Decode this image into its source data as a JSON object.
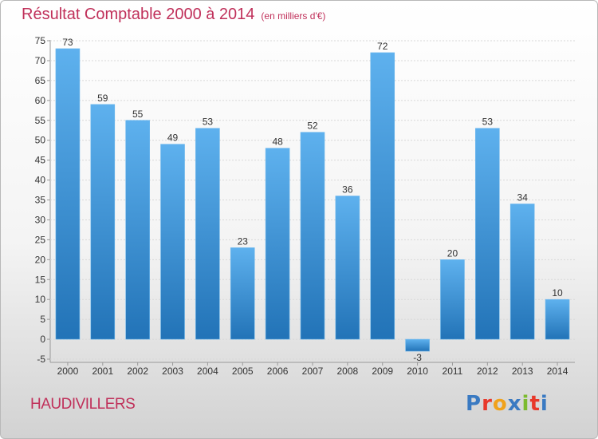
{
  "header": {
    "title": "Résultat Comptable 2000 à 2014",
    "unit": "(en milliers d'€)"
  },
  "footer": {
    "place": "HAUDIVILLERS",
    "logo": "Proxiti",
    "logo_colors": [
      "#3a7ac2",
      "#e8392b",
      "#f0a21c",
      "#3a7ac2",
      "#7cbb2f",
      "#e8392b",
      "#3a7ac2"
    ]
  },
  "colors": {
    "title": "#c0305a",
    "bar_top": "#5eb1ee",
    "bar_bottom": "#2273b7",
    "grid": "#d8d8d8"
  },
  "chart_data": {
    "type": "bar",
    "title": "Résultat Comptable 2000 à 2014",
    "subtitle": "(en milliers d'€)",
    "categories": [
      "2000",
      "2001",
      "2002",
      "2003",
      "2004",
      "2005",
      "2006",
      "2007",
      "2008",
      "2009",
      "2010",
      "2011",
      "2012",
      "2013",
      "2014"
    ],
    "values": [
      73,
      59,
      55,
      49,
      53,
      23,
      48,
      52,
      36,
      72,
      -3,
      20,
      53,
      34,
      10
    ],
    "value_labels": [
      "73",
      "59",
      "55",
      "49",
      "53",
      "23",
      "48",
      "52",
      "36",
      "72",
      "-3",
      "20",
      "53",
      "34",
      "10"
    ],
    "yticks": [
      -5,
      0,
      5,
      10,
      15,
      20,
      25,
      30,
      35,
      40,
      45,
      50,
      55,
      60,
      65,
      70,
      75
    ],
    "ytick_labels": [
      "-5",
      "0",
      "5",
      "10",
      "15",
      "20",
      "25",
      "30",
      "35",
      "40",
      "45",
      "50",
      "55",
      "60",
      "65",
      "70",
      "75"
    ],
    "ylim": [
      -5,
      75
    ],
    "grid": true,
    "legend": "none",
    "xlabel": "",
    "ylabel": ""
  }
}
